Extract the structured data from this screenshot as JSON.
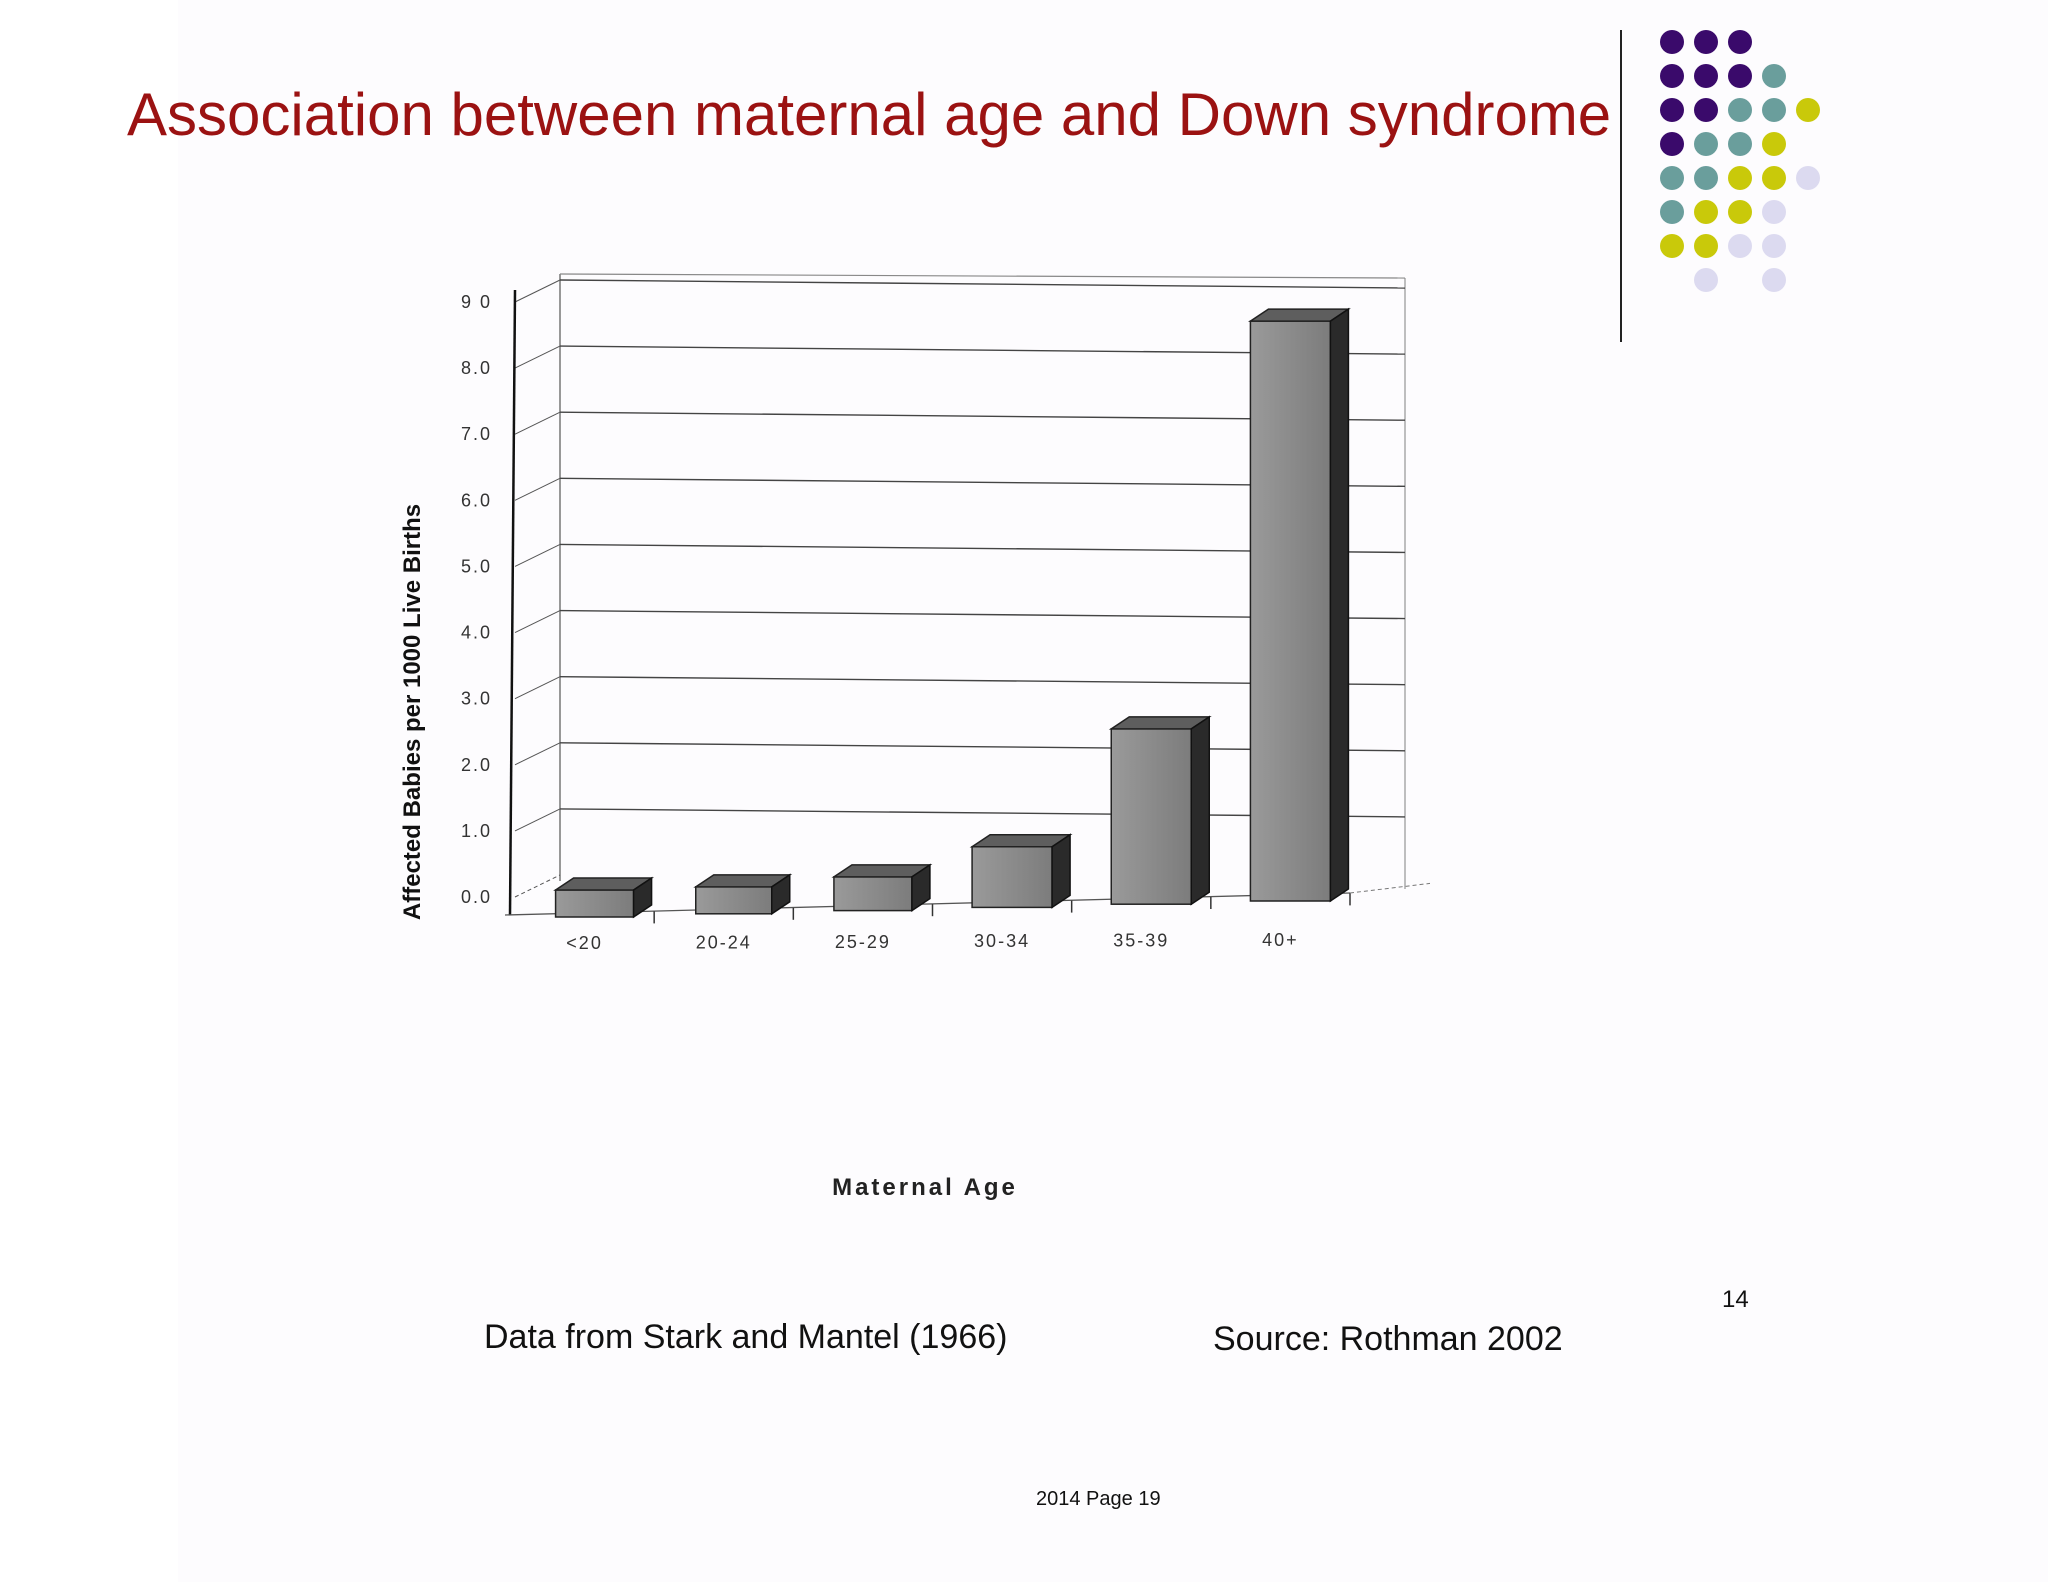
{
  "slide": {
    "title": "Association between maternal age and Down syndrome",
    "caption_left": "Data from Stark and Mantel (1966)",
    "caption_right": "Source: Rothman 2002",
    "slide_number": "14",
    "footer": "2014 Page 19",
    "title_color": "#9b1212"
  },
  "decoration": {
    "dot_colors": {
      "purple": "#3a0a6b",
      "teal": "#6a9e9c",
      "yellow": "#c9c90a",
      "lavender": "#dcdaf0"
    },
    "dot_grid": [
      [
        "purple",
        "purple",
        "purple",
        null,
        null
      ],
      [
        "purple",
        "purple",
        "purple",
        "teal",
        null
      ],
      [
        "purple",
        "purple",
        "teal",
        "teal",
        "yellow"
      ],
      [
        "purple",
        "teal",
        "teal",
        "yellow",
        null
      ],
      [
        "teal",
        "teal",
        "yellow",
        "yellow",
        "lavender"
      ],
      [
        "teal",
        "yellow",
        "yellow",
        "lavender",
        null
      ],
      [
        "yellow",
        "yellow",
        "lavender",
        "lavender",
        null
      ],
      [
        null,
        "lavender",
        null,
        "lavender",
        null
      ]
    ]
  },
  "chart_data": {
    "type": "bar",
    "title": "",
    "xlabel": "Maternal Age",
    "ylabel": "Affected Babies per 1000 Live Births",
    "categories": [
      "<20",
      "20-24",
      "25-29",
      "30-34",
      "35-39",
      "40+"
    ],
    "values": [
      0.4,
      0.4,
      0.5,
      0.9,
      2.6,
      8.6
    ],
    "ylim": [
      0,
      9
    ],
    "yticks": [
      "0.0",
      "1.0",
      "2.0",
      "3.0",
      "4.0",
      "5.0",
      "6.0",
      "7.0",
      "8.0",
      "9 0"
    ],
    "grid": true,
    "style": "3d",
    "colors": {
      "bar_front": "#8a8a8a",
      "bar_top": "#5e5e5e",
      "bar_side": "#2a2a2a",
      "grid": "#555555"
    }
  }
}
